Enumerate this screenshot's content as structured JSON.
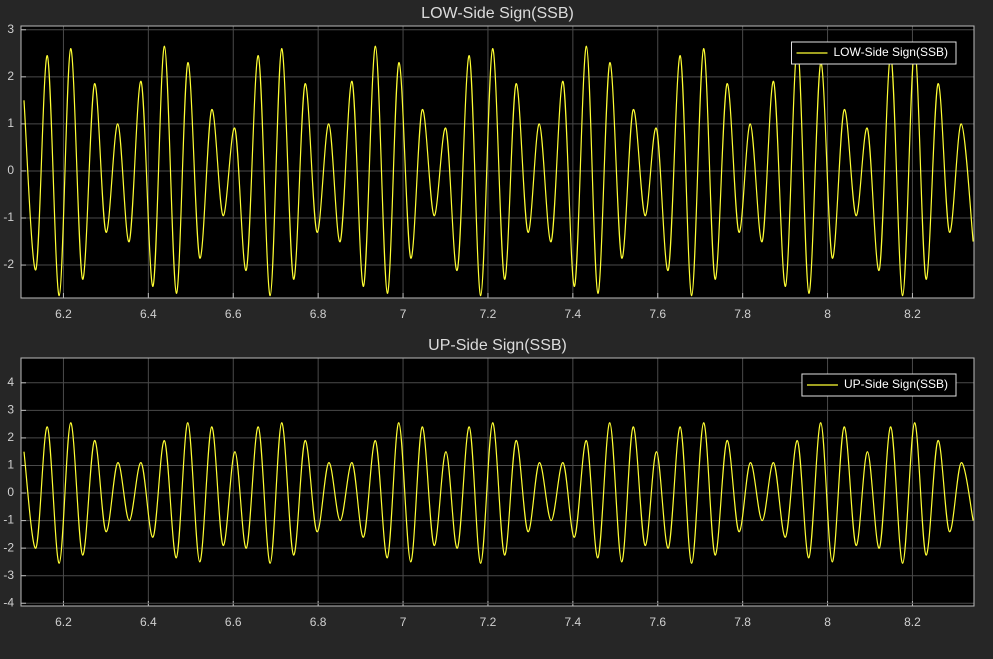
{
  "chart_data": [
    {
      "type": "line",
      "title": "LOW-Side Sign(SSB)",
      "x": [
        6.107,
        6.135,
        6.162,
        6.19,
        6.217,
        6.245,
        6.273,
        6.3,
        6.328,
        6.355,
        6.383,
        6.411,
        6.438,
        6.466,
        6.493,
        6.521,
        6.549,
        6.576,
        6.604,
        6.631,
        6.659,
        6.687,
        6.714,
        6.742,
        6.769,
        6.797,
        6.825,
        6.852,
        6.88,
        6.907,
        6.935,
        6.963,
        6.99,
        7.018,
        7.045,
        7.073,
        7.101,
        7.128,
        7.156,
        7.183,
        7.211,
        7.239,
        7.266,
        7.294,
        7.321,
        7.349,
        7.377,
        7.404,
        7.432,
        7.459,
        7.487,
        7.515,
        7.542,
        7.57,
        7.597,
        7.625,
        7.653,
        7.68,
        7.708,
        7.735,
        7.763,
        7.791,
        7.818,
        7.846,
        7.873,
        7.901,
        7.929,
        7.956,
        7.984,
        8.011,
        8.039,
        8.067,
        8.094,
        8.122,
        8.149,
        8.177,
        8.205,
        8.232,
        8.26,
        8.287,
        8.315,
        8.343
      ],
      "series": [
        {
          "name": "LOW-Side Sign(SSB)",
          "color": "#ffff33",
          "values": [
            1.5,
            -2.1,
            2.45,
            -2.65,
            2.6,
            -2.3,
            1.85,
            -1.3,
            1.0,
            -1.5,
            1.9,
            -2.45,
            2.65,
            -2.6,
            2.3,
            -1.85,
            1.3,
            -0.95,
            0.9,
            -2.1,
            2.45,
            -2.65,
            2.6,
            -2.3,
            1.85,
            -1.3,
            1.0,
            -1.5,
            1.9,
            -2.45,
            2.65,
            -2.6,
            2.3,
            -1.85,
            1.3,
            -0.95,
            0.9,
            -2.1,
            2.45,
            -2.65,
            2.6,
            -2.3,
            1.85,
            -1.3,
            1.0,
            -1.5,
            1.9,
            -2.45,
            2.65,
            -2.6,
            2.3,
            -1.85,
            1.3,
            -0.95,
            0.9,
            -2.1,
            2.45,
            -2.65,
            2.6,
            -2.3,
            1.85,
            -1.3,
            1.0,
            -1.5,
            1.9,
            -2.45,
            2.65,
            -2.6,
            2.3,
            -1.85,
            1.3,
            -0.95,
            0.9,
            -2.1,
            2.45,
            -2.65,
            2.6,
            -2.3,
            1.85,
            -1.3,
            1.0,
            -1.5
          ]
        }
      ],
      "xlim": [
        6.1,
        8.345
      ],
      "ylim": [
        -2.7,
        3.08
      ],
      "xticks": [
        6.2,
        6.4,
        6.6,
        6.8,
        7,
        7.2,
        7.4,
        7.6,
        7.8,
        8,
        8.2
      ],
      "yticks": [
        -2,
        -1,
        0,
        1,
        2,
        3
      ],
      "grid": true,
      "legend": "upper right"
    },
    {
      "type": "line",
      "title": "UP-Side Sign(SSB)",
      "x": [
        6.107,
        6.135,
        6.162,
        6.19,
        6.217,
        6.245,
        6.273,
        6.3,
        6.328,
        6.355,
        6.383,
        6.411,
        6.438,
        6.466,
        6.493,
        6.521,
        6.549,
        6.576,
        6.604,
        6.631,
        6.659,
        6.687,
        6.714,
        6.742,
        6.769,
        6.797,
        6.825,
        6.852,
        6.88,
        6.907,
        6.935,
        6.963,
        6.99,
        7.018,
        7.045,
        7.073,
        7.101,
        7.128,
        7.156,
        7.183,
        7.211,
        7.239,
        7.266,
        7.294,
        7.321,
        7.349,
        7.377,
        7.404,
        7.432,
        7.459,
        7.487,
        7.515,
        7.542,
        7.57,
        7.597,
        7.625,
        7.653,
        7.68,
        7.708,
        7.735,
        7.763,
        7.791,
        7.818,
        7.846,
        7.873,
        7.901,
        7.929,
        7.956,
        7.984,
        8.011,
        8.039,
        8.067,
        8.094,
        8.122,
        8.149,
        8.177,
        8.205,
        8.232,
        8.26,
        8.287,
        8.315,
        8.343
      ],
      "series": [
        {
          "name": "UP-Side Sign(SSB)",
          "color": "#ffff33",
          "values": [
            1.5,
            -2.0,
            2.4,
            -2.55,
            2.55,
            -2.25,
            1.9,
            -1.4,
            1.1,
            -1.0,
            1.1,
            -1.6,
            1.9,
            -2.35,
            2.55,
            -2.5,
            2.4,
            -1.9,
            1.5,
            -2.0,
            2.4,
            -2.55,
            2.55,
            -2.25,
            1.9,
            -1.4,
            1.1,
            -1.0,
            1.1,
            -1.6,
            1.9,
            -2.35,
            2.55,
            -2.5,
            2.4,
            -1.9,
            1.5,
            -2.0,
            2.4,
            -2.55,
            2.55,
            -2.25,
            1.9,
            -1.4,
            1.1,
            -1.0,
            1.1,
            -1.6,
            1.9,
            -2.35,
            2.55,
            -2.5,
            2.4,
            -1.9,
            1.5,
            -2.0,
            2.4,
            -2.55,
            2.55,
            -2.25,
            1.9,
            -1.4,
            1.1,
            -1.0,
            1.1,
            -1.6,
            1.9,
            -2.35,
            2.55,
            -2.5,
            2.4,
            -1.9,
            1.5,
            -2.0,
            2.4,
            -2.55,
            2.55,
            -2.25,
            1.9,
            -1.4,
            1.1,
            -1.0
          ]
        }
      ],
      "xlim": [
        6.1,
        8.345
      ],
      "ylim": [
        -4.1,
        4.9
      ],
      "xticks": [
        6.2,
        6.4,
        6.6,
        6.8,
        7,
        7.2,
        7.4,
        7.6,
        7.8,
        8,
        8.2
      ],
      "yticks": [
        -4,
        -3,
        -2,
        -1,
        0,
        1,
        2,
        3,
        4
      ],
      "grid": true,
      "legend": "upper right"
    }
  ]
}
